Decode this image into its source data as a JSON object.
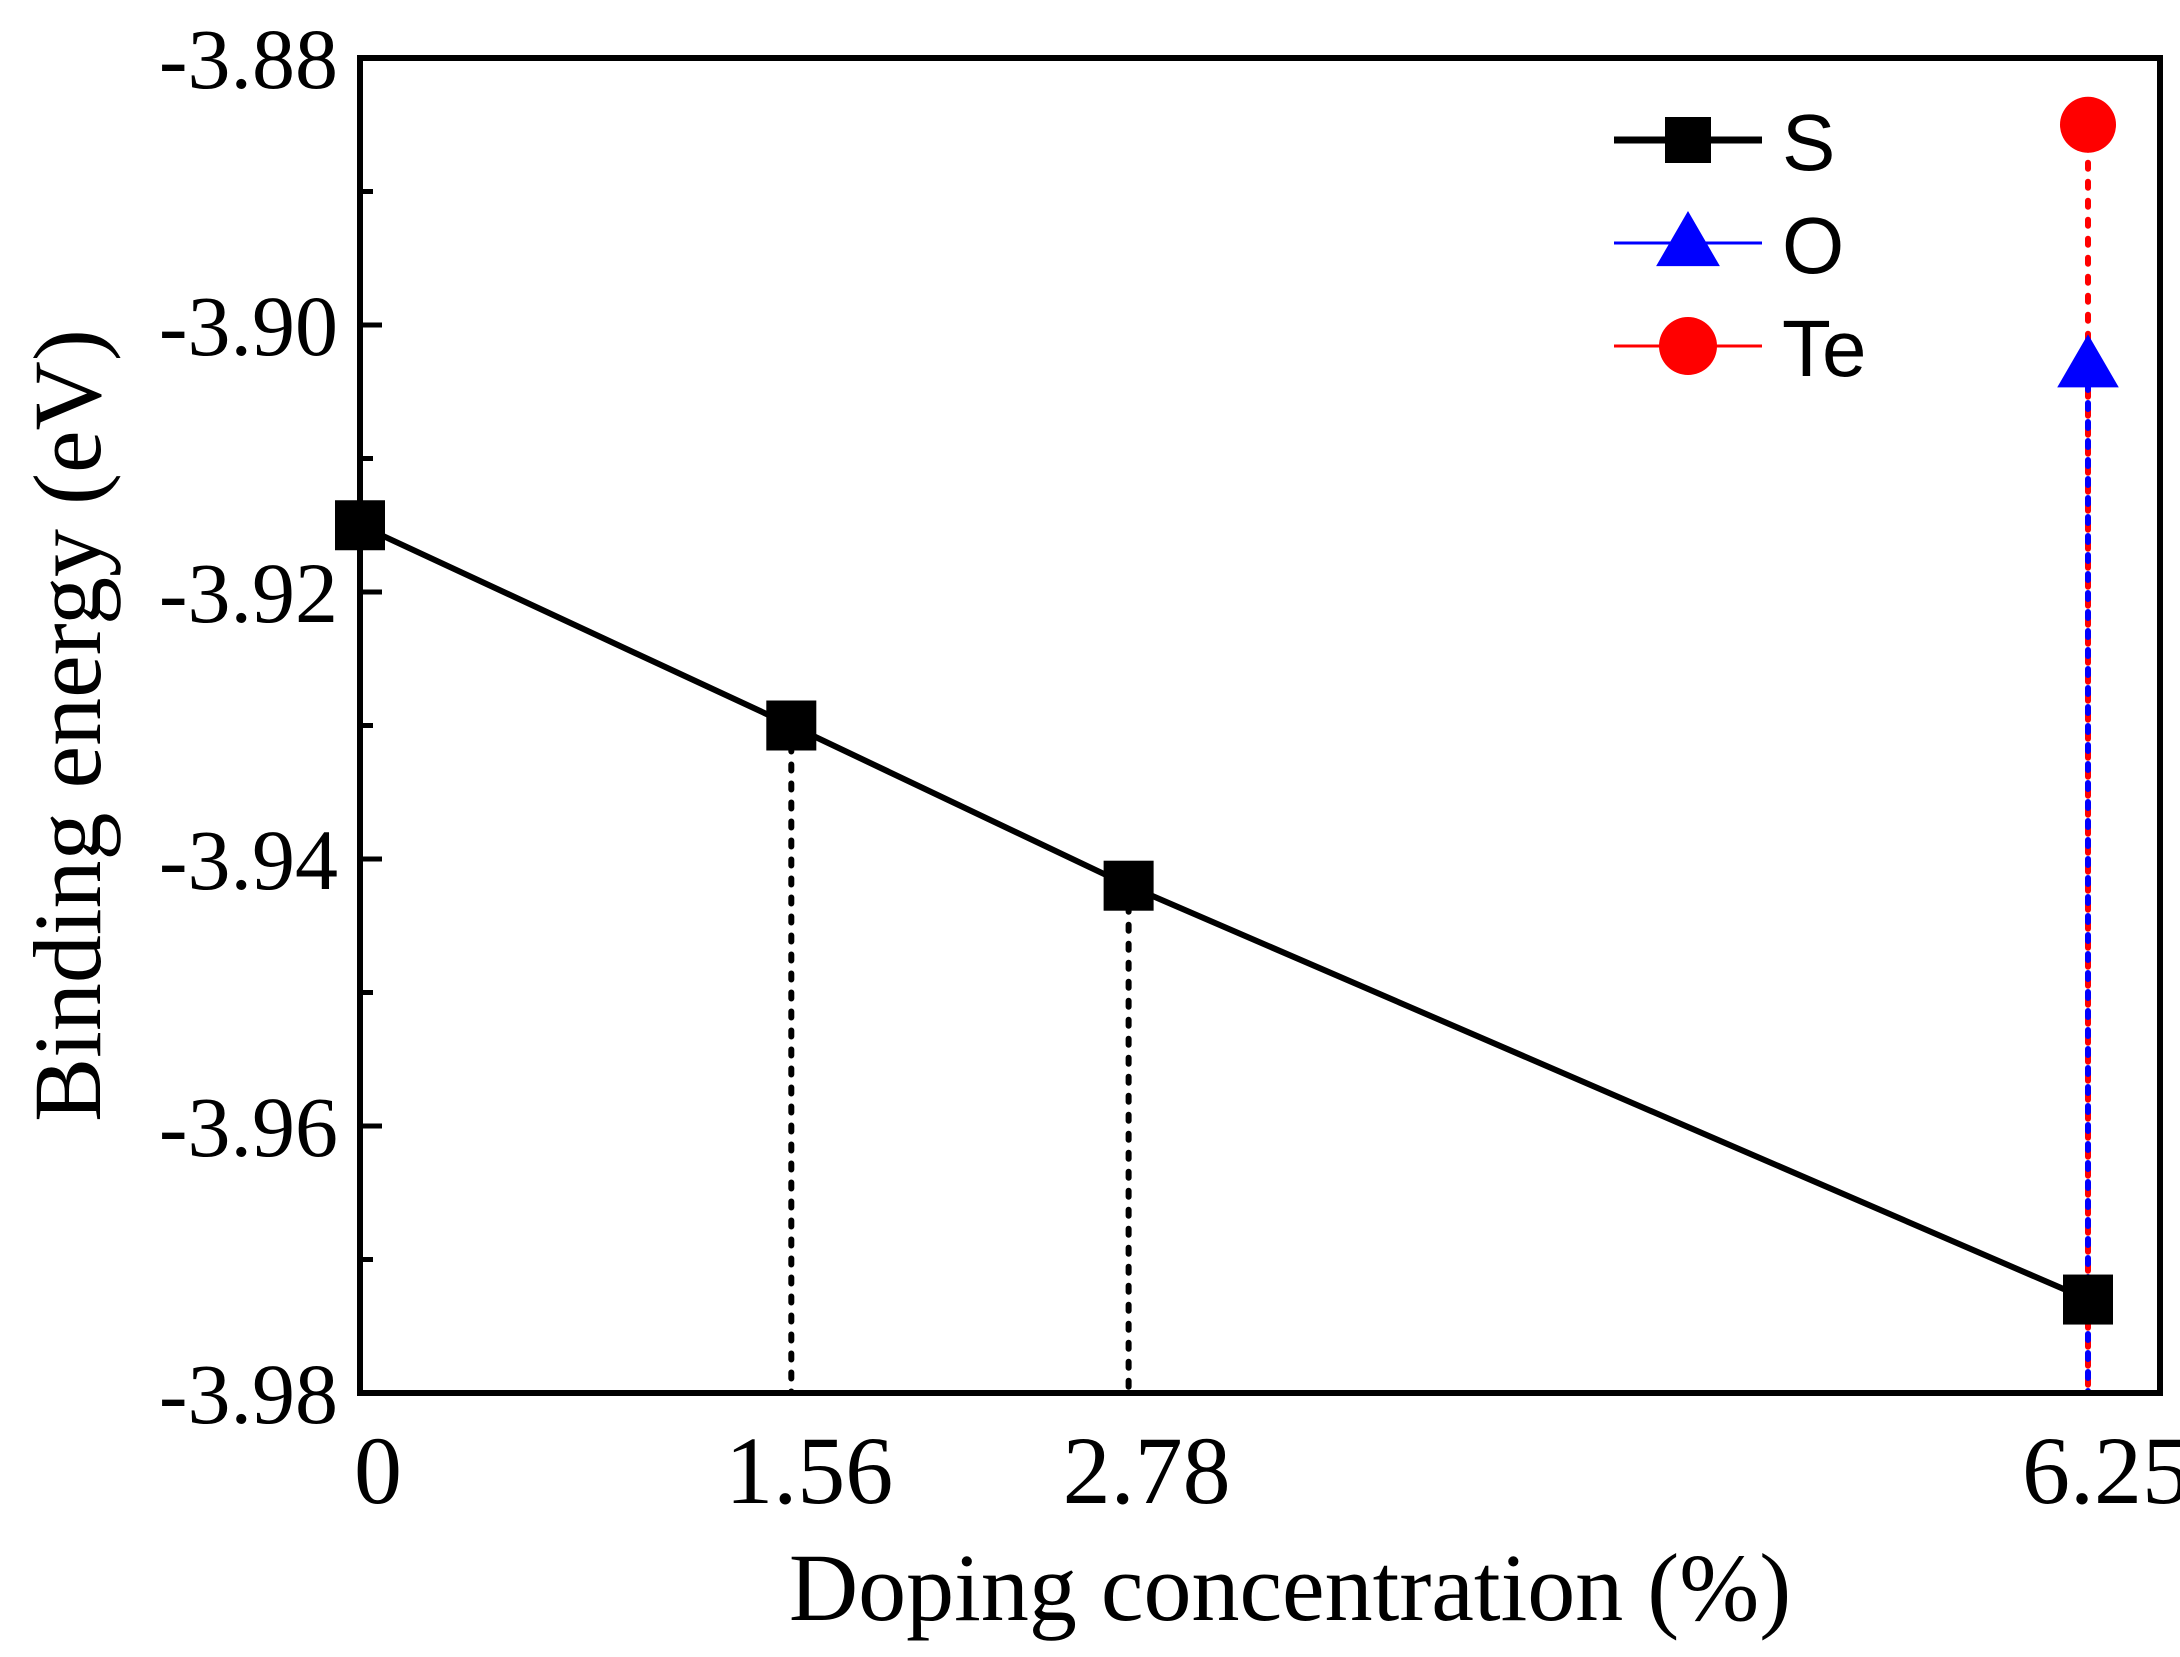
{
  "chart_data": {
    "type": "line",
    "xlabel": "Doping concentration (%)",
    "ylabel": "Binding energy (eV)",
    "ylim": [
      -3.98,
      -3.88
    ],
    "y_major_ticks": [
      -3.88,
      -3.9,
      -3.92,
      -3.94,
      -3.96,
      -3.98
    ],
    "y_tick_labels": [
      "-3.88",
      "-3.90",
      "-3.92",
      "-3.94",
      "-3.96",
      "-3.98"
    ],
    "y_minor_ticks": [
      -3.89,
      -3.91,
      -3.93,
      -3.95,
      -3.97
    ],
    "x_ticks": [
      0,
      1.56,
      2.78,
      6.25
    ],
    "x_tick_labels": [
      "0",
      "1.56",
      "2.78",
      "6.25"
    ],
    "legend_position": "top-right",
    "series": [
      {
        "name": "S",
        "marker": "square",
        "color": "#000000",
        "line": "solid",
        "x": [
          0,
          1.56,
          2.78,
          6.25
        ],
        "y": [
          -3.915,
          -3.93,
          -3.942,
          -3.973
        ]
      },
      {
        "name": "O",
        "marker": "triangle",
        "color": "#0000ff",
        "line": "solid",
        "x": [
          6.25
        ],
        "y": [
          -3.903
        ]
      },
      {
        "name": "Te",
        "marker": "circle",
        "color": "#ff0000",
        "line": "solid",
        "x": [
          6.25
        ],
        "y": [
          -3.885
        ]
      }
    ],
    "drop_lines": [
      {
        "x": 1.56,
        "y": -3.93,
        "color": "#000000"
      },
      {
        "x": 2.78,
        "y": -3.942,
        "color": "#000000"
      },
      {
        "x": 6.25,
        "y": -3.973,
        "color": "#000000"
      },
      {
        "x": 6.25,
        "y": -3.885,
        "color": "#ff0000"
      },
      {
        "x": 6.25,
        "y": -3.903,
        "color": "#0000ff"
      }
    ]
  }
}
